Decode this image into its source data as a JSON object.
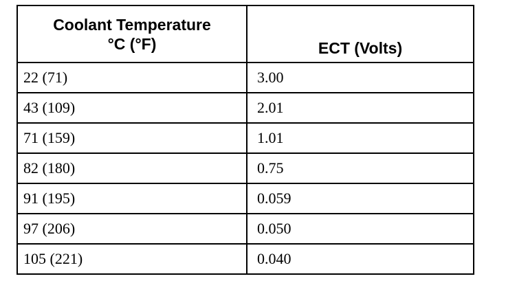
{
  "table": {
    "headers": {
      "temperature": [
        "Coolant Temperature",
        "°C (°F)"
      ],
      "ect": "ECT (Volts)"
    },
    "rows": [
      {
        "temp": "22 (71)",
        "ect": "3.00"
      },
      {
        "temp": "43 (109)",
        "ect": "2.01"
      },
      {
        "temp": "71 (159)",
        "ect": "1.01"
      },
      {
        "temp": "82 (180)",
        "ect": "0.75"
      },
      {
        "temp": "91 (195)",
        "ect": "0.059"
      },
      {
        "temp": "97 (206)",
        "ect": "0.050"
      },
      {
        "temp": "105 (221)",
        "ect": "0.040"
      }
    ]
  }
}
